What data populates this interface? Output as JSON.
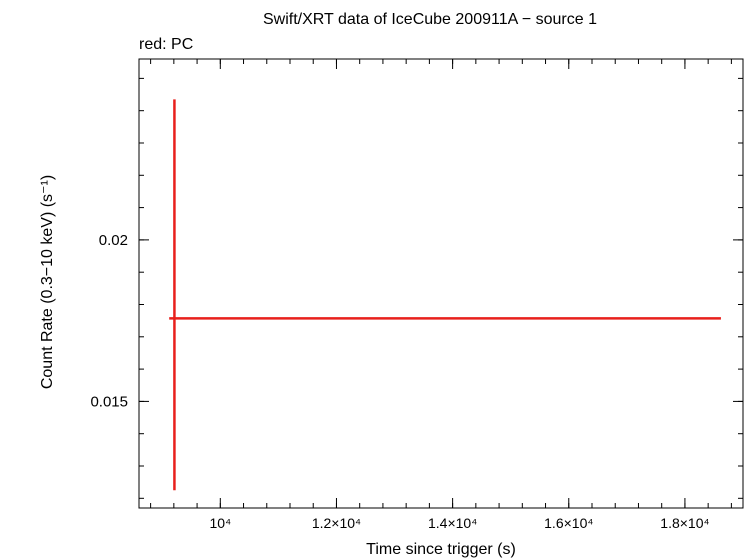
{
  "chart_data": {
    "type": "scatter",
    "title": "Swift/XRT data of IceCube 200911A − source 1",
    "subtitle": "red: PC",
    "xlabel": "Time since trigger (s)",
    "ylabel": "Count Rate (0.3−10 keV) (s⁻¹)",
    "xlim": [
      8600,
      19000
    ],
    "ylim": [
      0.0117,
      0.0256
    ],
    "x_major_ticks": [
      {
        "value": 10000,
        "label": "10⁴"
      },
      {
        "value": 12000,
        "label": "1.2×10⁴"
      },
      {
        "value": 14000,
        "label": "1.4×10⁴"
      },
      {
        "value": 16000,
        "label": "1.6×10⁴"
      },
      {
        "value": 18000,
        "label": "1.8×10⁴"
      }
    ],
    "x_minor_step": 400,
    "y_major_ticks": [
      {
        "value": 0.015,
        "label": "0.015"
      },
      {
        "value": 0.02,
        "label": "0.02"
      }
    ],
    "y_minor_step": 0.001,
    "series": [
      {
        "color": "#e8201c",
        "points": [
          {
            "x": 9210,
            "y": 0.01757,
            "xerr_lo": 9120,
            "xerr_hi": 18620,
            "yerr_lo": 0.01225,
            "yerr_hi": 0.02435
          }
        ]
      }
    ],
    "grid": false
  }
}
